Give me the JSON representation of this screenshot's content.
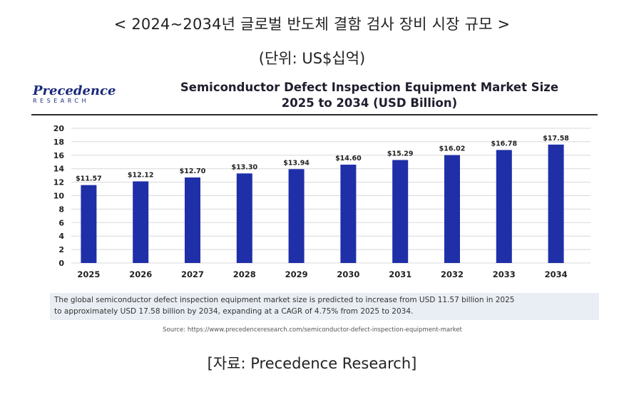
{
  "page_title": "< 2024~2034년 글로벌 반도체 결함 검사 장비 시장 규모 >",
  "unit_note": "(단위: US$십억)",
  "source_note": "[자료: Precedence Research]",
  "logo": {
    "main": "Precedence",
    "sub": "RESEARCH"
  },
  "figure_description": {
    "line1": "The global semiconductor defect inspection equipment market size is predicted to increase from USD 11.57 billion in 2025",
    "line2": "to approximately USD 17.58 billion by 2034, expanding at a CAGR of 4.75% from 2025 to 2034."
  },
  "figure_source": "Source: https://www.precedenceresearch.com/semiconductor-defect-inspection-equipment-market",
  "colors": {
    "bar": "#1f2fa8",
    "grid": "#d8d8d8",
    "text": "#222222",
    "desc_bg": "#e9eef4"
  },
  "chart_data": {
    "type": "bar",
    "title": "Semiconductor Defect Inspection Equipment Market Size",
    "subtitle": "2025 to 2034 (USD Billion)",
    "xlabel": "",
    "ylabel": "",
    "categories": [
      "2025",
      "2026",
      "2027",
      "2028",
      "2029",
      "2030",
      "2031",
      "2032",
      "2033",
      "2034"
    ],
    "values": [
      11.57,
      12.12,
      12.7,
      13.3,
      13.94,
      14.6,
      15.29,
      16.02,
      16.78,
      17.58
    ],
    "value_labels": [
      "$11.57",
      "$12.12",
      "$12.70",
      "$13.30",
      "$13.94",
      "$14.60",
      "$15.29",
      "$16.02",
      "$16.78",
      "$17.58"
    ],
    "ylim": [
      0,
      20
    ],
    "yticks": [
      "0",
      "2",
      "4",
      "6",
      "8",
      "10",
      "12",
      "14",
      "16",
      "18",
      "20"
    ],
    "grid": true,
    "legend": "none"
  }
}
